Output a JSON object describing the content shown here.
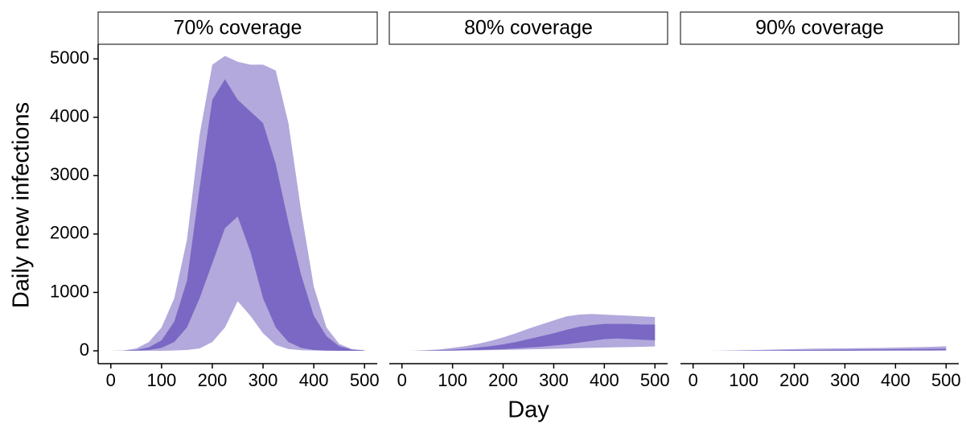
{
  "chart_data": {
    "type": "band",
    "ylabel": "Daily new infections",
    "xlabel": "Day",
    "ylim": [
      -220,
      5250
    ],
    "yticks": [
      0,
      1000,
      2000,
      3000,
      4000,
      5000
    ],
    "xlim": [
      -25,
      525
    ],
    "xticks": [
      0,
      100,
      200,
      300,
      400,
      500
    ],
    "x": [
      0,
      25,
      50,
      75,
      100,
      125,
      150,
      175,
      200,
      225,
      250,
      275,
      300,
      325,
      350,
      375,
      400,
      425,
      450,
      475,
      500
    ],
    "panels": [
      {
        "title": "70% coverage",
        "series": [
          {
            "color": "#b3a9dc",
            "upper": [
              0,
              5,
              40,
              150,
              400,
              900,
              1900,
              3700,
              4900,
              5050,
              4950,
              4900,
              4900,
              4800,
              3900,
              2400,
              1100,
              400,
              120,
              30,
              10
            ],
            "lower": [
              0,
              0,
              0,
              0,
              0,
              5,
              15,
              40,
              150,
              400,
              850,
              600,
              300,
              100,
              30,
              10,
              5,
              0,
              0,
              0,
              0
            ]
          },
          {
            "color": "#7b68c4",
            "upper": [
              0,
              2,
              15,
              60,
              180,
              500,
              1200,
              2800,
              4300,
              4650,
              4300,
              4100,
              3900,
              3200,
              2200,
              1300,
              600,
              250,
              80,
              20,
              5
            ],
            "lower": [
              0,
              0,
              3,
              15,
              50,
              150,
              400,
              900,
              1500,
              2100,
              2300,
              1700,
              900,
              400,
              150,
              50,
              15,
              5,
              0,
              0,
              0
            ]
          }
        ]
      },
      {
        "title": "80% coverage",
        "series": [
          {
            "color": "#b3a9dc",
            "upper": [
              0,
              2,
              10,
              25,
              50,
              80,
              120,
              170,
              230,
              300,
              380,
              450,
              520,
              590,
              620,
              630,
              620,
              610,
              600,
              590,
              580
            ],
            "lower": [
              0,
              0,
              0,
              0,
              2,
              5,
              8,
              12,
              15,
              20,
              25,
              30,
              35,
              40,
              45,
              50,
              55,
              60,
              65,
              70,
              75
            ]
          },
          {
            "color": "#7b68c4",
            "upper": [
              0,
              1,
              5,
              10,
              20,
              35,
              55,
              80,
              110,
              150,
              200,
              250,
              300,
              360,
              410,
              440,
              460,
              460,
              460,
              450,
              450
            ],
            "lower": [
              0,
              0,
              1,
              3,
              6,
              10,
              15,
              20,
              30,
              40,
              55,
              70,
              90,
              110,
              140,
              170,
              200,
              210,
              200,
              190,
              180
            ]
          }
        ]
      },
      {
        "title": "90% coverage",
        "series": [
          {
            "color": "#b3a9dc",
            "upper": [
              0,
              1,
              3,
              5,
              10,
              15,
              20,
              25,
              30,
              35,
              38,
              40,
              42,
              45,
              48,
              50,
              55,
              60,
              65,
              70,
              80
            ],
            "lower": [
              0,
              0,
              0,
              0,
              0,
              0,
              0,
              0,
              0,
              0,
              0,
              1,
              1,
              1,
              2,
              2,
              2,
              3,
              3,
              3,
              4
            ]
          },
          {
            "color": "#7b68c4",
            "upper": [
              0,
              0,
              1,
              2,
              4,
              6,
              8,
              10,
              12,
              14,
              16,
              18,
              20,
              22,
              24,
              26,
              28,
              30,
              32,
              34,
              36
            ],
            "lower": [
              0,
              0,
              0,
              0,
              0,
              0,
              1,
              1,
              1,
              2,
              2,
              3,
              3,
              4,
              5,
              6,
              7,
              8,
              9,
              9,
              10
            ]
          }
        ]
      }
    ]
  }
}
